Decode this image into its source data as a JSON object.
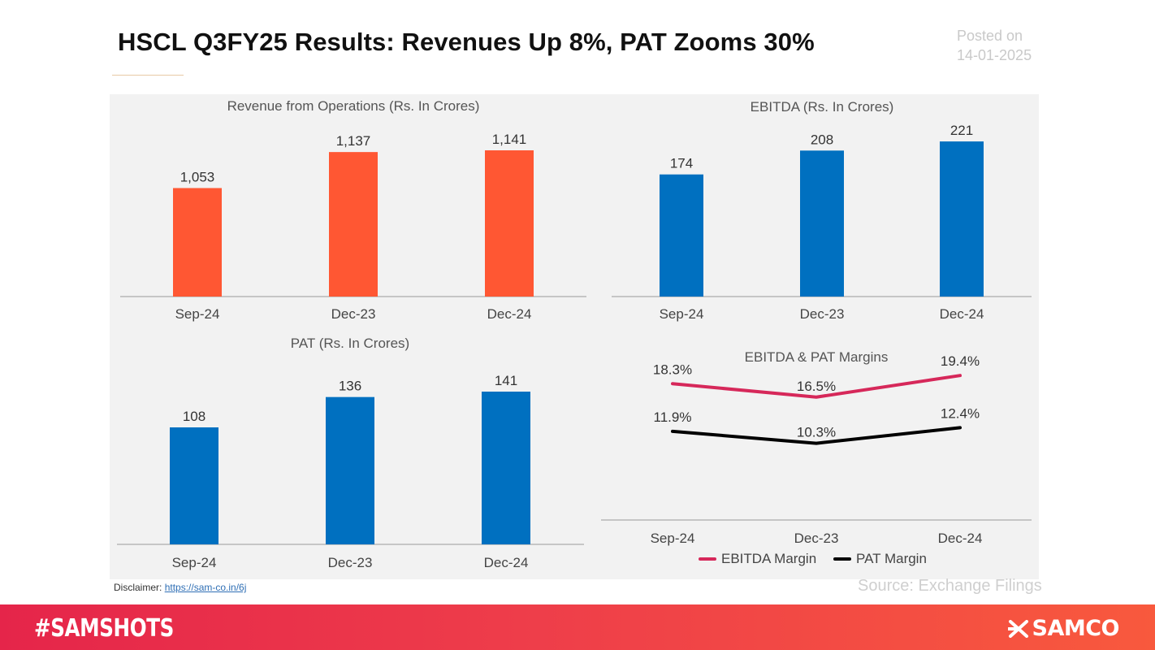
{
  "header": {
    "title": "HSCL Q3FY25 Results: Revenues Up 8%, PAT Zooms 30%",
    "posted_label": "Posted on",
    "posted_date": "14-01-2025"
  },
  "footer": {
    "disclaimer_label": "Disclaimer:",
    "disclaimer_link": "https://sam-co.in/6j",
    "source": "Source: Exchange Filings",
    "hashtag": "#SAMSHOTS",
    "brand": "SAMCO",
    "brand_icon": "samco-logo-icon"
  },
  "colors": {
    "revenue_bar": "#FF5733",
    "blue_bar": "#0070C0",
    "ebitda_margin": "#D6285A",
    "pat_margin": "#000000"
  },
  "chart_data": [
    {
      "id": "revenue",
      "type": "bar",
      "title": "Revenue from Operations (Rs. In Crores)",
      "categories": [
        "Sep-24",
        "Dec-23",
        "Dec-24"
      ],
      "values": [
        1053,
        1137,
        1141
      ],
      "labels": [
        "1,053",
        "1,137",
        "1,141"
      ],
      "ylim": [
        800,
        1160
      ],
      "color": "#FF5733"
    },
    {
      "id": "ebitda",
      "type": "bar",
      "title": "EBITDA (Rs. In Crores)",
      "categories": [
        "Sep-24",
        "Dec-23",
        "Dec-24"
      ],
      "values": [
        174,
        208,
        221
      ],
      "labels": [
        "174",
        "208",
        "221"
      ],
      "ylim": [
        0,
        235
      ],
      "color": "#0070C0"
    },
    {
      "id": "pat",
      "type": "bar",
      "title": "PAT (Rs. In Crores)",
      "categories": [
        "Sep-24",
        "Dec-23",
        "Dec-24"
      ],
      "values": [
        108,
        136,
        141
      ],
      "labels": [
        "108",
        "136",
        "141"
      ],
      "ylim": [
        0,
        150
      ],
      "color": "#0070C0"
    },
    {
      "id": "margins",
      "type": "line",
      "title": "EBITDA & PAT Margins",
      "categories": [
        "Sep-24",
        "Dec-23",
        "Dec-24"
      ],
      "ylim": [
        0,
        0.24
      ],
      "series": [
        {
          "name": "EBITDA Margin",
          "values": [
            18.3,
            16.5,
            19.4
          ],
          "labels": [
            "18.3%",
            "16.5%",
            "19.4%"
          ],
          "color": "#D6285A"
        },
        {
          "name": "PAT Margin",
          "values": [
            11.9,
            10.3,
            12.4
          ],
          "labels": [
            "11.9%",
            "10.3%",
            "12.4%"
          ],
          "color": "#000000"
        }
      ]
    }
  ]
}
